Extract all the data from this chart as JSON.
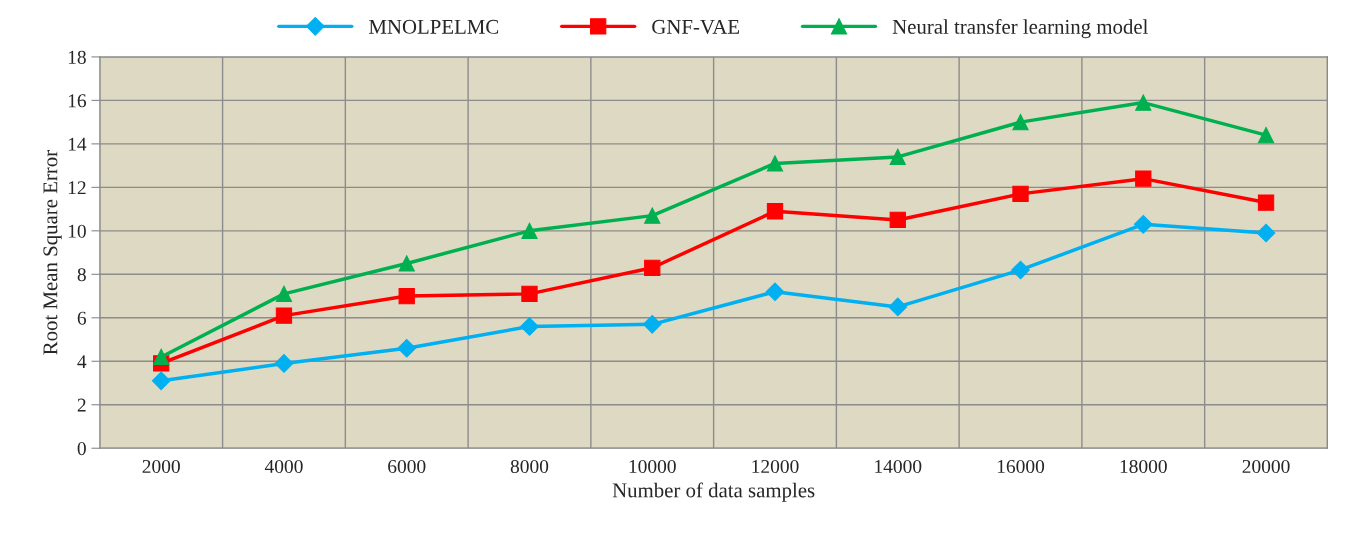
{
  "chart_data": {
    "type": "line",
    "xlabel": "Number of data samples",
    "ylabel": "Root Mean Square Error",
    "categories": [
      "2000",
      "4000",
      "6000",
      "8000",
      "10000",
      "12000",
      "14000",
      "16000",
      "18000",
      "20000"
    ],
    "series": [
      {
        "name": "MNOLPELMC",
        "color": "#00b0f0",
        "marker": "diamond",
        "values": [
          3.1,
          3.9,
          4.6,
          5.6,
          5.7,
          7.2,
          6.5,
          8.2,
          10.3,
          9.9
        ]
      },
      {
        "name": "GNF-VAE",
        "color": "#ff0000",
        "marker": "square",
        "values": [
          3.9,
          6.1,
          7.0,
          7.1,
          8.3,
          10.9,
          10.5,
          11.7,
          12.4,
          11.3
        ]
      },
      {
        "name": "Neural transfer learning model",
        "color": "#00b050",
        "marker": "triangle",
        "values": [
          4.2,
          7.1,
          8.5,
          10.0,
          10.7,
          13.1,
          13.4,
          15.0,
          15.9,
          14.4
        ]
      }
    ],
    "ylim": [
      0,
      18
    ],
    "yticks": [
      0,
      2,
      4,
      6,
      8,
      10,
      12,
      14,
      16,
      18
    ],
    "grid": true,
    "legend": "top"
  }
}
